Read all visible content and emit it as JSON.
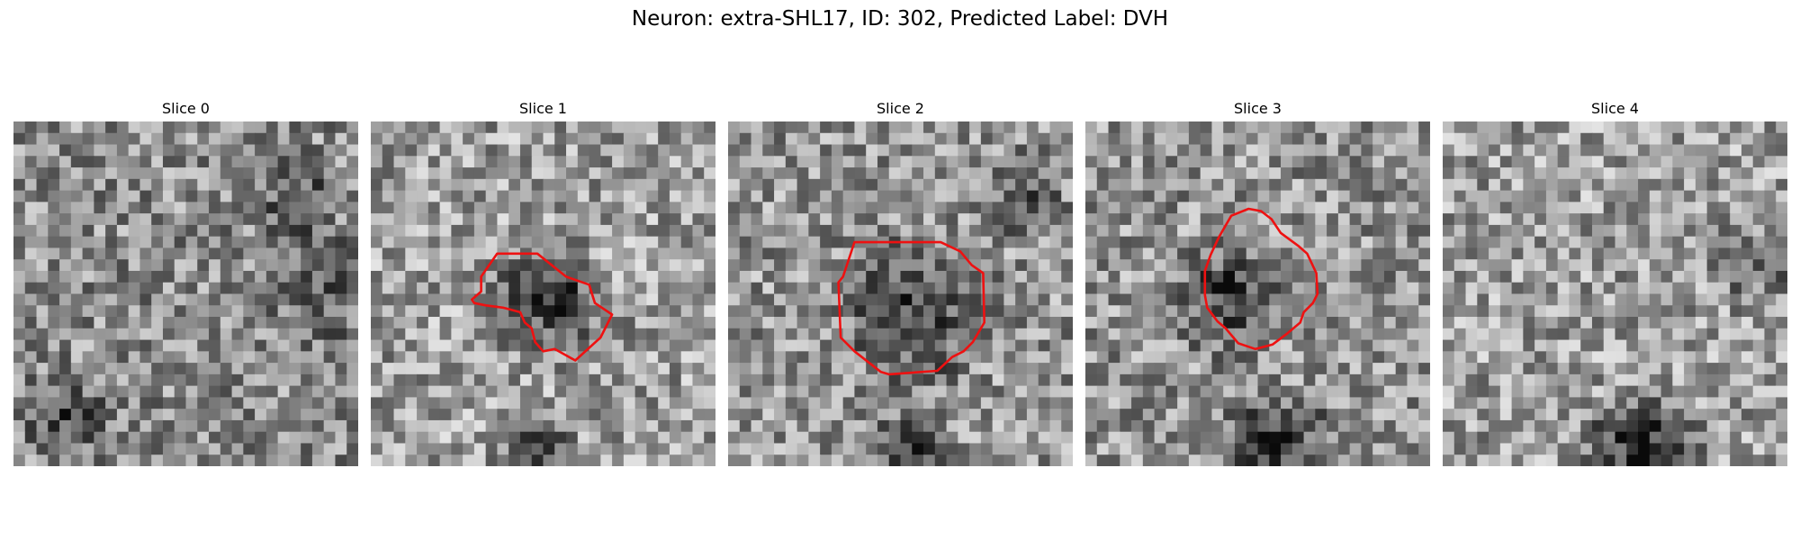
{
  "figure": {
    "title": "Neuron: extra-SHL17, ID: 302, Predicted Label: DVH"
  },
  "grid_size": 30,
  "contour_color": "#ee1111",
  "panels": [
    {
      "title": "Slice 0",
      "base_brightness": 0.55,
      "dark_blobs": [
        [
          4,
          25,
          3,
          0.25
        ],
        [
          24,
          6,
          3,
          0.2
        ],
        [
          27,
          14,
          4,
          0.15
        ]
      ],
      "contour": []
    },
    {
      "title": "Slice 1",
      "base_brightness": 0.62,
      "dark_blobs": [
        [
          15,
          15,
          4,
          0.35
        ],
        [
          14,
          29,
          3,
          0.3
        ]
      ],
      "contour": [
        [
          11,
          11.5
        ],
        [
          14.5,
          11.5
        ],
        [
          17,
          13.5
        ],
        [
          19,
          14.2
        ],
        [
          19.5,
          15.8
        ],
        [
          21,
          16.8
        ],
        [
          20,
          18.8
        ],
        [
          17.8,
          20.8
        ],
        [
          16,
          19.8
        ],
        [
          15,
          20
        ],
        [
          14.3,
          19.2
        ],
        [
          14,
          18
        ],
        [
          13.4,
          17.5
        ],
        [
          13,
          16.6
        ],
        [
          11.5,
          16.2
        ],
        [
          10,
          16
        ],
        [
          9,
          15.8
        ],
        [
          8.8,
          15.5
        ],
        [
          9.6,
          14.8
        ],
        [
          9.6,
          13.5
        ]
      ]
    },
    {
      "title": "Slice 2",
      "base_brightness": 0.58,
      "dark_blobs": [
        [
          16,
          16,
          5,
          0.3
        ],
        [
          25,
          6,
          3,
          0.2
        ],
        [
          15,
          29,
          3,
          0.3
        ]
      ],
      "contour": [
        [
          11,
          10.5
        ],
        [
          18.5,
          10.5
        ],
        [
          20.2,
          11.3
        ],
        [
          21.2,
          12.5
        ],
        [
          22.2,
          13.2
        ],
        [
          22.3,
          17.5
        ],
        [
          21.3,
          19.2
        ],
        [
          20.5,
          20
        ],
        [
          19.5,
          20.5
        ],
        [
          18.2,
          21.7
        ],
        [
          14,
          22
        ],
        [
          13.3,
          21.8
        ],
        [
          11,
          20
        ],
        [
          9.8,
          18.8
        ],
        [
          9.6,
          14
        ],
        [
          10,
          13.5
        ]
      ]
    },
    {
      "title": "Slice 3",
      "base_brightness": 0.58,
      "dark_blobs": [
        [
          12,
          15,
          4,
          0.3
        ],
        [
          16,
          28,
          4,
          0.35
        ]
      ],
      "contour": [
        [
          12.7,
          8.2
        ],
        [
          14.2,
          7.6
        ],
        [
          15.3,
          7.8
        ],
        [
          16.2,
          8.5
        ],
        [
          17,
          9.7
        ],
        [
          18.5,
          10.8
        ],
        [
          19.3,
          11.5
        ],
        [
          20.1,
          13.2
        ],
        [
          20.2,
          15
        ],
        [
          19.8,
          15.8
        ],
        [
          19,
          16.6
        ],
        [
          18.7,
          17.5
        ],
        [
          17.5,
          18.5
        ],
        [
          16.3,
          19.4
        ],
        [
          14.8,
          19.8
        ],
        [
          13.3,
          19.3
        ],
        [
          12.2,
          18
        ],
        [
          11.5,
          17.4
        ],
        [
          10.6,
          16.2
        ],
        [
          10.4,
          15.1
        ],
        [
          10.4,
          13
        ],
        [
          10.9,
          11.6
        ],
        [
          11.6,
          10.1
        ]
      ]
    },
    {
      "title": "Slice 4",
      "base_brightness": 0.62,
      "dark_blobs": [
        [
          17,
          28,
          4,
          0.4
        ],
        [
          27,
          12,
          3,
          0.2
        ]
      ],
      "contour": []
    }
  ]
}
